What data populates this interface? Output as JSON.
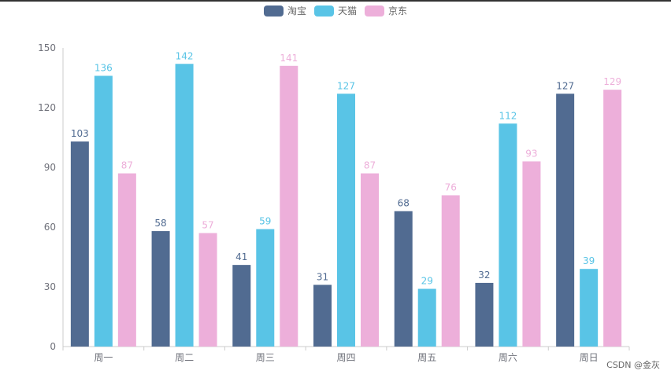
{
  "chart_data": {
    "type": "bar",
    "categories": [
      "周一",
      "周二",
      "周三",
      "周四",
      "周五",
      "周六",
      "周日"
    ],
    "series": [
      {
        "name": "淘宝",
        "color": "#516b91",
        "values": [
          103,
          58,
          41,
          31,
          68,
          32,
          127
        ]
      },
      {
        "name": "天猫",
        "color": "#59c4e6",
        "values": [
          136,
          142,
          59,
          127,
          29,
          112,
          39
        ]
      },
      {
        "name": "京东",
        "color": "#edafda",
        "values": [
          87,
          57,
          141,
          87,
          76,
          93,
          129
        ]
      }
    ],
    "ylim": [
      0,
      150
    ],
    "yticks": [
      0,
      30,
      60,
      90,
      120,
      150
    ],
    "xlabel": "",
    "ylabel": "",
    "legend_position": "top-center",
    "data_labels": true
  },
  "watermark": "CSDN @金灰"
}
